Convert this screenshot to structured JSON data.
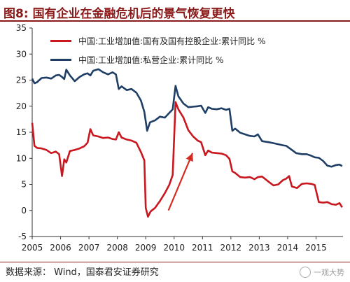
{
  "figure_label": "图8:",
  "title": "国有企业在金融危机后的景气恢复更快",
  "source": "数据来源：  Wind，国泰君安证券研究",
  "watermark": "一观大势",
  "colors": {
    "soe": "#c8171e",
    "private": "#1f3e66",
    "title": "#8b1a1a"
  },
  "chart_data": {
    "type": "line",
    "title": "",
    "xlabel": "",
    "ylabel": "",
    "x_ticks": [
      "2005",
      "2006",
      "2007",
      "2008",
      "2009",
      "2010",
      "2011",
      "2012",
      "2013",
      "2014",
      "2015"
    ],
    "xlim": [
      2005.0,
      2015.95
    ],
    "ylim": [
      -5,
      35
    ],
    "yticks": [
      -5,
      0,
      5,
      10,
      15,
      20,
      25,
      30,
      35
    ],
    "grid": false,
    "legend_position": "top-left",
    "annotation": "arrow from 2009.8, 0 to 2010.65, 11",
    "series": [
      {
        "name": "中国:工业增加值:国有及国有控股企业:累计同比 %",
        "color": "#c8171e",
        "points": [
          [
            2005.0,
            16.8
          ],
          [
            2005.08,
            12.4
          ],
          [
            2005.17,
            12.0
          ],
          [
            2005.33,
            11.9
          ],
          [
            2005.5,
            11.6
          ],
          [
            2005.67,
            11.0
          ],
          [
            2005.83,
            11.3
          ],
          [
            2005.95,
            10.8
          ],
          [
            2006.05,
            6.6
          ],
          [
            2006.13,
            9.8
          ],
          [
            2006.2,
            9.2
          ],
          [
            2006.33,
            11.4
          ],
          [
            2006.5,
            11.6
          ],
          [
            2006.67,
            11.9
          ],
          [
            2006.83,
            12.3
          ],
          [
            2006.95,
            13.0
          ],
          [
            2007.05,
            15.6
          ],
          [
            2007.15,
            14.4
          ],
          [
            2007.33,
            14.2
          ],
          [
            2007.5,
            13.9
          ],
          [
            2007.67,
            14.0
          ],
          [
            2007.83,
            13.7
          ],
          [
            2007.95,
            13.6
          ],
          [
            2008.05,
            15.0
          ],
          [
            2008.15,
            14.0
          ],
          [
            2008.33,
            13.6
          ],
          [
            2008.5,
            13.4
          ],
          [
            2008.67,
            13.0
          ],
          [
            2008.83,
            11.2
          ],
          [
            2008.95,
            9.6
          ],
          [
            2009.0,
            0.5
          ],
          [
            2009.08,
            -1.2
          ],
          [
            2009.17,
            -0.2
          ],
          [
            2009.33,
            0.5
          ],
          [
            2009.5,
            1.8
          ],
          [
            2009.67,
            3.3
          ],
          [
            2009.83,
            4.9
          ],
          [
            2009.95,
            6.8
          ],
          [
            2010.05,
            20.8
          ],
          [
            2010.15,
            19.4
          ],
          [
            2010.33,
            17.8
          ],
          [
            2010.5,
            15.4
          ],
          [
            2010.67,
            14.2
          ],
          [
            2010.83,
            13.4
          ],
          [
            2010.95,
            13.1
          ],
          [
            2011.1,
            10.6
          ],
          [
            2011.2,
            11.5
          ],
          [
            2011.33,
            11.1
          ],
          [
            2011.5,
            11.0
          ],
          [
            2011.67,
            10.9
          ],
          [
            2011.83,
            10.6
          ],
          [
            2011.95,
            9.9
          ],
          [
            2012.05,
            7.5
          ],
          [
            2012.15,
            7.2
          ],
          [
            2012.33,
            6.4
          ],
          [
            2012.5,
            6.3
          ],
          [
            2012.67,
            6.4
          ],
          [
            2012.83,
            6.0
          ],
          [
            2012.95,
            6.4
          ],
          [
            2013.1,
            6.5
          ],
          [
            2013.33,
            5.5
          ],
          [
            2013.5,
            4.8
          ],
          [
            2013.67,
            5.0
          ],
          [
            2013.83,
            5.8
          ],
          [
            2013.95,
            6.1
          ],
          [
            2014.05,
            6.6
          ],
          [
            2014.15,
            4.6
          ],
          [
            2014.33,
            4.3
          ],
          [
            2014.5,
            5.1
          ],
          [
            2014.67,
            5.2
          ],
          [
            2014.83,
            5.1
          ],
          [
            2014.95,
            4.9
          ],
          [
            2015.1,
            1.6
          ],
          [
            2015.25,
            1.5
          ],
          [
            2015.4,
            1.6
          ],
          [
            2015.55,
            1.2
          ],
          [
            2015.7,
            1.1
          ],
          [
            2015.83,
            1.4
          ],
          [
            2015.92,
            0.6
          ]
        ]
      },
      {
        "name": "中国:工业增加值:私营企业:累计同比 %",
        "color": "#1f3e66",
        "points": [
          [
            2005.0,
            25.3
          ],
          [
            2005.08,
            24.4
          ],
          [
            2005.17,
            24.6
          ],
          [
            2005.33,
            25.4
          ],
          [
            2005.5,
            25.5
          ],
          [
            2005.67,
            25.3
          ],
          [
            2005.83,
            25.9
          ],
          [
            2005.95,
            26.0
          ],
          [
            2006.05,
            25.6
          ],
          [
            2006.13,
            25.2
          ],
          [
            2006.2,
            27.0
          ],
          [
            2006.33,
            25.9
          ],
          [
            2006.5,
            24.8
          ],
          [
            2006.67,
            25.6
          ],
          [
            2006.83,
            26.1
          ],
          [
            2006.95,
            26.3
          ],
          [
            2007.05,
            25.9
          ],
          [
            2007.15,
            26.8
          ],
          [
            2007.33,
            27.1
          ],
          [
            2007.5,
            26.5
          ],
          [
            2007.67,
            26.1
          ],
          [
            2007.83,
            26.5
          ],
          [
            2007.95,
            26.1
          ],
          [
            2008.05,
            23.3
          ],
          [
            2008.15,
            23.8
          ],
          [
            2008.33,
            23.1
          ],
          [
            2008.5,
            23.3
          ],
          [
            2008.67,
            22.6
          ],
          [
            2008.83,
            21.1
          ],
          [
            2008.95,
            18.9
          ],
          [
            2009.05,
            15.3
          ],
          [
            2009.15,
            16.9
          ],
          [
            2009.33,
            17.3
          ],
          [
            2009.5,
            18.0
          ],
          [
            2009.67,
            17.8
          ],
          [
            2009.83,
            18.7
          ],
          [
            2009.95,
            19.4
          ],
          [
            2010.05,
            23.9
          ],
          [
            2010.15,
            21.9
          ],
          [
            2010.33,
            20.5
          ],
          [
            2010.5,
            19.8
          ],
          [
            2010.67,
            19.9
          ],
          [
            2010.83,
            20.0
          ],
          [
            2010.95,
            20.1
          ],
          [
            2011.1,
            18.7
          ],
          [
            2011.2,
            19.8
          ],
          [
            2011.33,
            19.5
          ],
          [
            2011.5,
            19.4
          ],
          [
            2011.67,
            19.6
          ],
          [
            2011.83,
            19.3
          ],
          [
            2011.95,
            19.5
          ],
          [
            2012.05,
            15.3
          ],
          [
            2012.15,
            15.7
          ],
          [
            2012.33,
            14.9
          ],
          [
            2012.5,
            14.6
          ],
          [
            2012.67,
            14.3
          ],
          [
            2012.83,
            14.2
          ],
          [
            2012.95,
            14.6
          ],
          [
            2013.1,
            13.3
          ],
          [
            2013.33,
            13.1
          ],
          [
            2013.5,
            12.9
          ],
          [
            2013.67,
            12.7
          ],
          [
            2013.83,
            12.5
          ],
          [
            2013.95,
            12.4
          ],
          [
            2014.1,
            11.8
          ],
          [
            2014.3,
            11.0
          ],
          [
            2014.5,
            10.8
          ],
          [
            2014.67,
            10.8
          ],
          [
            2014.83,
            10.5
          ],
          [
            2014.95,
            10.2
          ],
          [
            2015.1,
            10.1
          ],
          [
            2015.25,
            9.5
          ],
          [
            2015.4,
            8.6
          ],
          [
            2015.55,
            8.4
          ],
          [
            2015.7,
            8.7
          ],
          [
            2015.83,
            8.8
          ],
          [
            2015.92,
            8.5
          ]
        ]
      }
    ]
  }
}
